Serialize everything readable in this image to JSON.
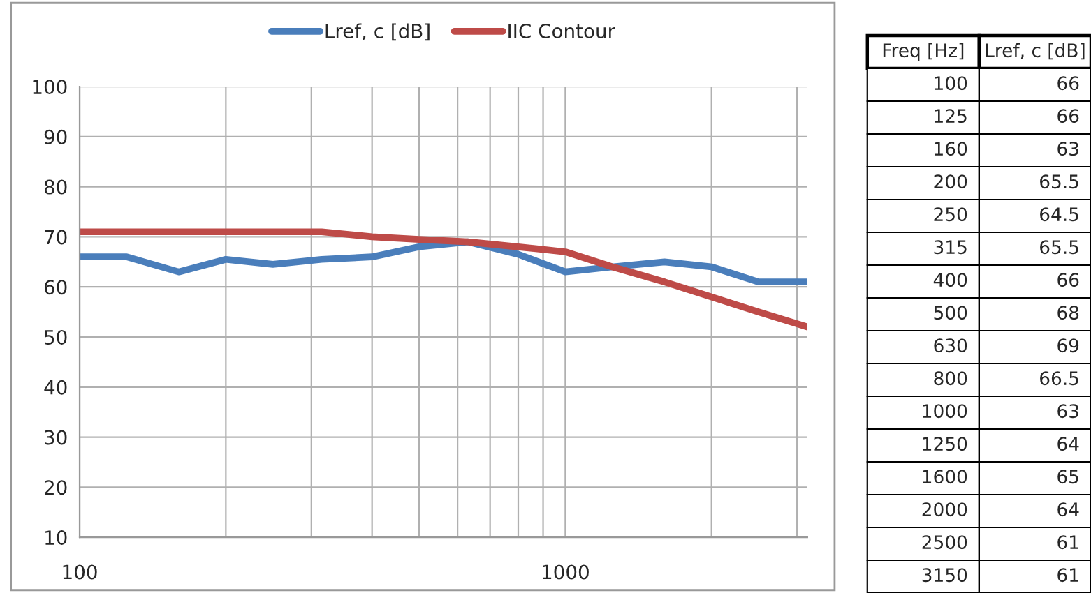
{
  "chart_data": [
    {
      "type": "line",
      "x": [
        100,
        125,
        160,
        200,
        250,
        315,
        400,
        500,
        630,
        800,
        1000,
        1250,
        1600,
        2000,
        2500,
        3150
      ],
      "series": [
        {
          "name": "Lref, c [dB]",
          "color": "#4a7ebb",
          "values": [
            66,
            66,
            63,
            65.5,
            64.5,
            65.5,
            66,
            68,
            69,
            66.5,
            63,
            64,
            65,
            64,
            61,
            61
          ]
        },
        {
          "name": "IIC Contour",
          "color": "#be4b48",
          "values": [
            71,
            71,
            71,
            71,
            71,
            71,
            70,
            69.5,
            69,
            68,
            67,
            64,
            61,
            58,
            55,
            52
          ]
        }
      ],
      "log": "x",
      "xlim": [
        100,
        3150
      ],
      "xticks": [
        100,
        {
          "value": 200,
          "label": null
        },
        {
          "value": 300,
          "label": null
        },
        {
          "value": 400,
          "label": null
        },
        {
          "value": 500,
          "label": null
        },
        {
          "value": 600,
          "label": null
        },
        {
          "value": 700,
          "label": null
        },
        {
          "value": 800,
          "label": null
        },
        {
          "value": 900,
          "label": null
        },
        1000,
        {
          "value": 2000,
          "label": null
        },
        {
          "value": 3000,
          "label": null
        }
      ],
      "ylim": [
        10,
        100
      ],
      "yticks": [
        10,
        20,
        30,
        40,
        50,
        60,
        70,
        80,
        90,
        100
      ],
      "grid": true,
      "legend": "top",
      "marker": "none",
      "line_style": "solid"
    },
    {
      "type": "other",
      "annotations": [
        "Freq [Hz]",
        "Lref, c [dB]",
        "100",
        "66",
        "125",
        "66",
        "160",
        "63",
        "200",
        "65.5",
        "250",
        "64.5",
        "315",
        "65.5",
        "400",
        "66",
        "500",
        "68",
        "630",
        "69",
        "800",
        "66.5",
        "1000",
        "63",
        "1250",
        "64",
        "1600",
        "65",
        "2000",
        "64",
        "2500",
        "61",
        "3150",
        "61"
      ]
    }
  ]
}
